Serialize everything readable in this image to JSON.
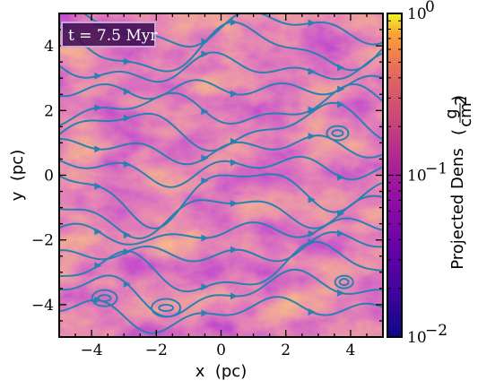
{
  "chart_data": {
    "type": "heatmap",
    "subtype": "projected density map with magnetic field streamlines",
    "annotation": "t = 7.5 Myr",
    "xlabel": "x  (pc)",
    "ylabel": "y  (pc)",
    "xlim": [
      -5,
      5
    ],
    "ylim": [
      -5,
      5
    ],
    "xticks": [
      -4,
      -2,
      0,
      2,
      4
    ],
    "yticks": [
      -4,
      -2,
      0,
      2,
      4
    ],
    "xtick_labels": [
      "−4",
      "−2",
      "0",
      "2",
      "4"
    ],
    "ytick_labels": [
      "−4",
      "−2",
      "0",
      "2",
      "4"
    ],
    "colorbar": {
      "label_main": "Projected Dens",
      "label_unit_num": "g",
      "label_unit_den": "cm",
      "label_unit_exp": "2",
      "scale": "log",
      "range": [
        0.01,
        1
      ],
      "colormap": "plasma",
      "ticks": [
        {
          "value": 1,
          "base": "10",
          "exp": "0"
        },
        {
          "value": 0.1,
          "base": "10",
          "exp": "−1"
        },
        {
          "value": 0.01,
          "base": "10",
          "exp": "−2"
        }
      ]
    },
    "streamline_color": "#2a7fb3",
    "grid": false
  }
}
